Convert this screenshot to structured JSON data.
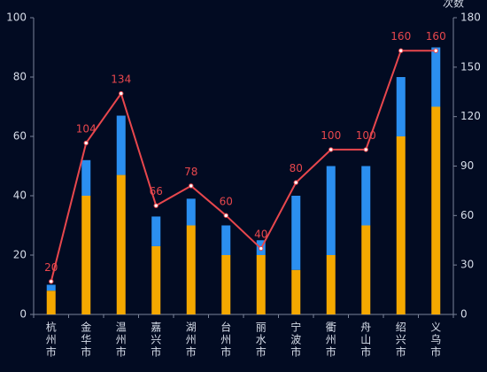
{
  "chart_data": {
    "type": "bar",
    "categories": [
      "杭州市",
      "金华市",
      "温州市",
      "嘉兴市",
      "湖州市",
      "台州市",
      "丽水市",
      "宁波市",
      "衢州市",
      "舟山市",
      "绍兴市",
      "义乌市"
    ],
    "series": [
      {
        "type": "bar",
        "stack": "total",
        "values": [
          8,
          40,
          47,
          23,
          30,
          20,
          20,
          15,
          20,
          30,
          60,
          70
        ],
        "color": "#f5a800"
      },
      {
        "type": "bar",
        "stack": "total",
        "values": [
          2,
          12,
          20,
          10,
          9,
          10,
          5,
          25,
          30,
          20,
          20,
          20
        ],
        "color": "#2b8ff0"
      },
      {
        "type": "line",
        "axis": "right",
        "values": [
          20,
          104,
          134,
          66,
          78,
          60,
          40,
          80,
          100,
          100,
          160,
          160
        ],
        "color": "#e8474d",
        "data_labels": true
      }
    ],
    "y_left": {
      "ylim": [
        0,
        100
      ],
      "ticks": [
        0,
        20,
        40,
        60,
        80,
        100
      ],
      "label": ""
    },
    "y_right": {
      "ylim": [
        0,
        180
      ],
      "ticks": [
        0,
        30,
        60,
        90,
        120,
        150,
        180
      ],
      "label": "次数"
    },
    "grid": false,
    "legend": "none"
  }
}
